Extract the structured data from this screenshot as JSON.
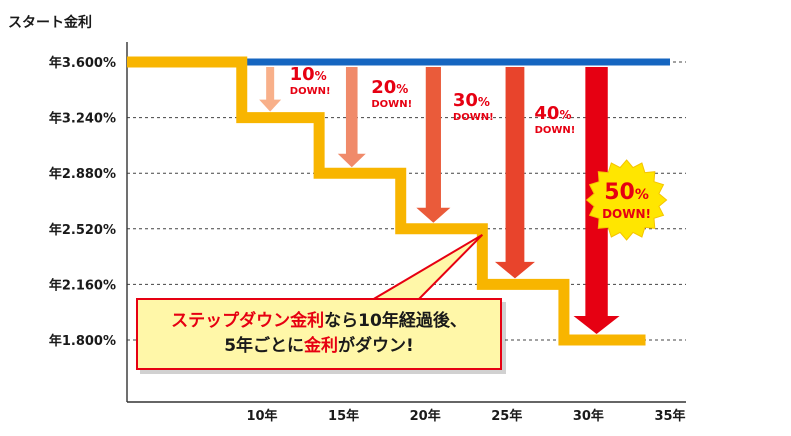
{
  "chart_data": {
    "type": "line",
    "ylabel": "スタート金利",
    "y_ticks": [
      "年3.600%",
      "年3.240%",
      "年2.880%",
      "年2.520%",
      "年2.160%",
      "年1.800%"
    ],
    "y_values": [
      3.6,
      3.24,
      2.88,
      2.52,
      2.16,
      1.8
    ],
    "x_ticks": [
      "10年",
      "15年",
      "20年",
      "25年",
      "30年",
      "35年"
    ],
    "x_values": [
      10,
      15,
      20,
      25,
      30,
      35
    ],
    "xlim": [
      0,
      35
    ],
    "ylim": [
      1.3,
      3.8
    ],
    "series": [
      {
        "color": "#1565c0",
        "x": [
          8.5,
          35
        ],
        "y": [
          3.6,
          3.6
        ]
      },
      {
        "color": "#f8b500",
        "x": [
          0,
          8.5,
          8.5,
          13.5,
          13.5,
          18.5,
          18.5,
          23.5,
          23.5,
          28.5,
          28.5,
          33.5
        ],
        "y": [
          3.6,
          3.6,
          3.24,
          3.24,
          2.88,
          2.88,
          2.52,
          2.52,
          2.16,
          2.16,
          1.8,
          1.8
        ]
      }
    ],
    "annotations": [
      {
        "pct": "10",
        "pct_sign": "%",
        "word": "DOWN!",
        "x": 10.5,
        "y_from": 3.6,
        "y_to": 3.24,
        "color": "#f8b08a"
      },
      {
        "pct": "20",
        "pct_sign": "%",
        "word": "DOWN!",
        "x": 15.5,
        "y_from": 3.6,
        "y_to": 2.88,
        "color": "#f08a6a"
      },
      {
        "pct": "30",
        "pct_sign": "%",
        "word": "DOWN!",
        "x": 20.5,
        "y_from": 3.6,
        "y_to": 2.52,
        "color": "#ea5b3a"
      },
      {
        "pct": "40",
        "pct_sign": "%",
        "word": "DOWN!",
        "x": 25.5,
        "y_from": 3.6,
        "y_to": 2.16,
        "color": "#e8442c"
      },
      {
        "pct": "50",
        "pct_sign": "%",
        "word": "DOWN!",
        "x": 30.5,
        "y_from": 3.6,
        "y_to": 1.8,
        "color": "#e60012"
      }
    ],
    "grid": "dashed-horizontal"
  },
  "callout": {
    "line1_red": "ステップダウン金利",
    "line1_rest": "なら10年経過後、",
    "line2_a": "5年ごとに",
    "line2_red": "金利",
    "line2_b": "がダウン!"
  }
}
